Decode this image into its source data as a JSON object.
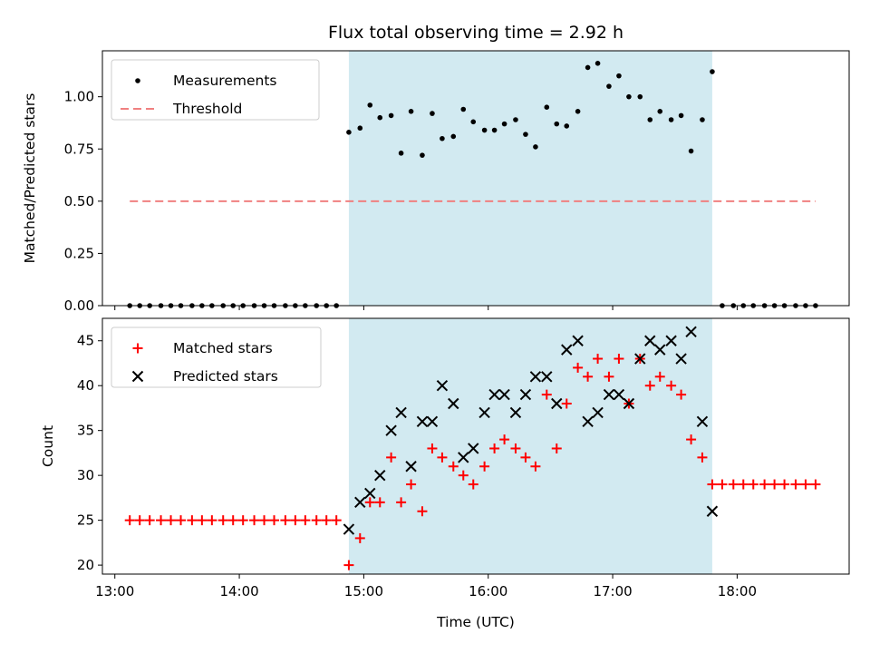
{
  "chart_data": {
    "type": "scatter",
    "title": "Flux total observing time = 2.92 h",
    "xlabel": "Time (UTC)",
    "x_ticks": [
      "13:00",
      "14:00",
      "15:00",
      "16:00",
      "17:00",
      "18:00"
    ],
    "x_tick_hours": [
      13,
      14,
      15,
      16,
      17,
      18
    ],
    "xlim_hours": [
      12.9,
      18.9
    ],
    "shaded_interval_hours": [
      14.88,
      17.8
    ],
    "shaded_color": "#add8e6",
    "panels": [
      {
        "ylabel": "Matched/Predicted stars",
        "ylim": [
          0,
          1.22
        ],
        "y_ticks": [
          "0.00",
          "0.25",
          "0.50",
          "0.75",
          "1.00"
        ],
        "y_tick_values": [
          0,
          0.25,
          0.5,
          0.75,
          1.0
        ],
        "legend": {
          "placement": "top-left",
          "entries": [
            "Measurements",
            "Threshold"
          ]
        },
        "series": [
          {
            "name": "Measurements",
            "marker": "dot",
            "color": "#000000",
            "x_hours": [
              13.12,
              13.2,
              13.28,
              13.37,
              13.45,
              13.53,
              13.62,
              13.7,
              13.78,
              13.87,
              13.95,
              14.03,
              14.12,
              14.2,
              14.28,
              14.37,
              14.45,
              14.53,
              14.62,
              14.7,
              14.78,
              14.88,
              14.97,
              15.05,
              15.13,
              15.22,
              15.3,
              15.38,
              15.47,
              15.55,
              15.63,
              15.72,
              15.8,
              15.88,
              15.97,
              16.05,
              16.13,
              16.22,
              16.3,
              16.38,
              16.47,
              16.55,
              16.63,
              16.72,
              16.8,
              16.88,
              16.97,
              17.05,
              17.13,
              17.22,
              17.3,
              17.38,
              17.47,
              17.55,
              17.63,
              17.72,
              17.8,
              17.88,
              17.97,
              18.05,
              18.13,
              18.22,
              18.3,
              18.38,
              18.47,
              18.55,
              18.63
            ],
            "y": [
              0,
              0,
              0,
              0,
              0,
              0,
              0,
              0,
              0,
              0,
              0,
              0,
              0,
              0,
              0,
              0,
              0,
              0,
              0,
              0,
              0,
              0.83,
              0.85,
              0.96,
              0.9,
              0.91,
              0.73,
              0.93,
              0.72,
              0.92,
              0.8,
              0.81,
              0.94,
              0.88,
              0.84,
              0.84,
              0.87,
              0.89,
              0.82,
              0.76,
              0.95,
              0.87,
              0.86,
              0.93,
              1.14,
              1.16,
              1.05,
              1.1,
              1.0,
              1.0,
              0.89,
              0.93,
              0.89,
              0.91,
              0.74,
              0.89,
              1.12,
              0,
              0,
              0,
              0,
              0,
              0,
              0,
              0,
              0,
              0
            ]
          },
          {
            "name": "Threshold",
            "marker": "dashed-line",
            "color": "#f08080",
            "x_hours": [
              13.12,
              18.63
            ],
            "y": [
              0.5,
              0.5
            ]
          }
        ]
      },
      {
        "ylabel": "Count",
        "ylim": [
          19.0,
          47.5
        ],
        "y_ticks": [
          "20",
          "25",
          "30",
          "35",
          "40",
          "45"
        ],
        "y_tick_values": [
          20,
          25,
          30,
          35,
          40,
          45
        ],
        "legend": {
          "placement": "top-left",
          "entries": [
            "Matched stars",
            "Predicted stars"
          ]
        },
        "series": [
          {
            "name": "Matched stars",
            "marker": "plus",
            "color": "#ff0000",
            "x_hours": [
              13.12,
              13.2,
              13.28,
              13.37,
              13.45,
              13.53,
              13.62,
              13.7,
              13.78,
              13.87,
              13.95,
              14.03,
              14.12,
              14.2,
              14.28,
              14.37,
              14.45,
              14.53,
              14.62,
              14.7,
              14.78,
              14.88,
              14.97,
              15.05,
              15.13,
              15.22,
              15.3,
              15.38,
              15.47,
              15.55,
              15.63,
              15.72,
              15.8,
              15.88,
              15.97,
              16.05,
              16.13,
              16.22,
              16.3,
              16.38,
              16.47,
              16.55,
              16.63,
              16.72,
              16.8,
              16.88,
              16.97,
              17.05,
              17.13,
              17.22,
              17.3,
              17.38,
              17.47,
              17.55,
              17.63,
              17.72,
              17.8,
              17.88,
              17.97,
              18.05,
              18.13,
              18.22,
              18.3,
              18.38,
              18.47,
              18.55,
              18.63
            ],
            "y": [
              25,
              25,
              25,
              25,
              25,
              25,
              25,
              25,
              25,
              25,
              25,
              25,
              25,
              25,
              25,
              25,
              25,
              25,
              25,
              25,
              25,
              20,
              23,
              27,
              27,
              32,
              27,
              29,
              26,
              33,
              32,
              31,
              30,
              29,
              31,
              33,
              34,
              33,
              32,
              31,
              39,
              33,
              38,
              42,
              41,
              43,
              41,
              43,
              38,
              43,
              40,
              41,
              40,
              39,
              34,
              32,
              29,
              29,
              29,
              29,
              29,
              29,
              29,
              29,
              29,
              29,
              29
            ]
          },
          {
            "name": "Predicted stars",
            "marker": "x",
            "color": "#000000",
            "x_hours": [
              14.88,
              14.97,
              15.05,
              15.13,
              15.22,
              15.3,
              15.38,
              15.47,
              15.55,
              15.63,
              15.72,
              15.8,
              15.88,
              15.97,
              16.05,
              16.13,
              16.22,
              16.3,
              16.38,
              16.47,
              16.55,
              16.63,
              16.72,
              16.8,
              16.88,
              16.97,
              17.05,
              17.13,
              17.22,
              17.3,
              17.38,
              17.47,
              17.55,
              17.63,
              17.72,
              17.8
            ],
            "y": [
              24,
              27,
              28,
              30,
              35,
              37,
              31,
              36,
              36,
              40,
              38,
              32,
              33,
              37,
              39,
              39,
              37,
              39,
              41,
              41,
              38,
              44,
              45,
              36,
              37,
              39,
              39,
              38,
              43,
              45,
              44,
              45,
              43,
              46,
              36,
              26
            ]
          }
        ]
      }
    ]
  }
}
